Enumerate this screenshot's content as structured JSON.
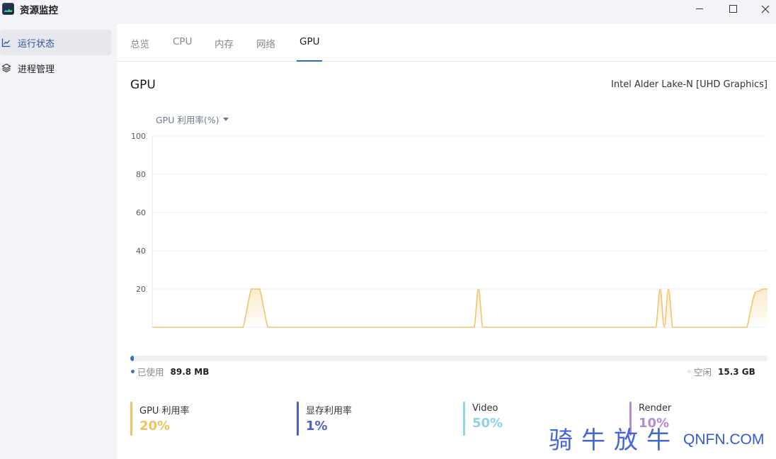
{
  "window": {
    "title": "资源监控",
    "controls": {
      "minimize": "minimize-icon",
      "maximize": "maximize-icon",
      "close": "close-icon"
    }
  },
  "sidebar": {
    "items": [
      {
        "label": "运行状态",
        "icon": "line-chart-icon",
        "active": true
      },
      {
        "label": "进程管理",
        "icon": "layers-icon",
        "active": false
      }
    ]
  },
  "tabs": [
    {
      "label": "总览",
      "active": false
    },
    {
      "label": "CPU",
      "active": false
    },
    {
      "label": "内存",
      "active": false
    },
    {
      "label": "网络",
      "active": false
    },
    {
      "label": "GPU",
      "active": true
    }
  ],
  "gpu": {
    "title": "GPU",
    "model": "Intel Alder Lake-N [UHD Graphics]",
    "metric_selector": "GPU 利用率(%)"
  },
  "chart_data": {
    "type": "area",
    "ylim": [
      0,
      100
    ],
    "yticks": [
      "100",
      "80",
      "60",
      "40",
      "20"
    ],
    "grid": true,
    "color": "#f2c46d",
    "series": [
      {
        "x": [
          0,
          1,
          2,
          3,
          4,
          5,
          6,
          7,
          8,
          9,
          10,
          11,
          12,
          13,
          14,
          15,
          16,
          17,
          18,
          19,
          20,
          21,
          22,
          23,
          24,
          25,
          26,
          27,
          28,
          29,
          30,
          31,
          32,
          33,
          34,
          35,
          36,
          37,
          38,
          39,
          40,
          41,
          42,
          43,
          44,
          45,
          46,
          47,
          48,
          49,
          50,
          51,
          52,
          53,
          54,
          55,
          56,
          57,
          58,
          59,
          60,
          61,
          62,
          63,
          64,
          65,
          66,
          67,
          68,
          69,
          70,
          71,
          72,
          73,
          74,
          75,
          76,
          77,
          78,
          79,
          80,
          81,
          82,
          83,
          84,
          85,
          86,
          87,
          88,
          89,
          90,
          91,
          92,
          93,
          94,
          95,
          96,
          97,
          98,
          99,
          100,
          101,
          102,
          103,
          104,
          105,
          106,
          107,
          108,
          109,
          110,
          111,
          112,
          113,
          114,
          115,
          116,
          117,
          118,
          119,
          120,
          121,
          122,
          123,
          124,
          125,
          126,
          127,
          128,
          129,
          130,
          131,
          132,
          133,
          134,
          135,
          136,
          137,
          138,
          139,
          140,
          141,
          142,
          143,
          144,
          145,
          146,
          147,
          148,
          149
        ],
        "values": [
          0,
          0,
          0,
          0,
          0,
          0,
          0,
          0,
          0,
          0,
          0,
          0,
          0,
          0,
          0,
          0,
          0,
          0,
          0,
          0,
          0,
          0,
          0,
          10,
          20,
          20,
          20,
          10,
          0,
          0,
          0,
          0,
          0,
          0,
          0,
          0,
          0,
          0,
          0,
          0,
          0,
          0,
          0,
          0,
          0,
          0,
          0,
          0,
          0,
          0,
          0,
          0,
          0,
          0,
          0,
          0,
          0,
          0,
          0,
          0,
          0,
          0,
          0,
          0,
          0,
          0,
          0,
          0,
          0,
          0,
          0,
          0,
          0,
          0,
          0,
          0,
          0,
          0,
          0,
          20,
          0,
          0,
          0,
          0,
          0,
          0,
          0,
          0,
          0,
          0,
          0,
          0,
          0,
          0,
          0,
          0,
          0,
          0,
          0,
          0,
          0,
          0,
          0,
          0,
          0,
          0,
          0,
          0,
          0,
          0,
          0,
          0,
          0,
          0,
          0,
          0,
          0,
          0,
          0,
          0,
          0,
          0,
          0,
          20,
          0,
          20,
          0,
          0,
          0,
          0,
          0,
          0,
          0,
          0,
          0,
          0,
          0,
          0,
          0,
          0,
          0,
          0,
          0,
          0,
          0,
          10,
          18,
          19,
          20,
          20
        ]
      }
    ]
  },
  "memory": {
    "used_label": "已使用",
    "used_value": "89.8 MB",
    "free_label": "空闲",
    "free_value": "15.3 GB",
    "used_fraction": 0.006,
    "used_color": "#3a6fd1",
    "free_color": "#eef0f4"
  },
  "stats": [
    {
      "label": "GPU 利用率",
      "value": "20%",
      "color": "#f0c262"
    },
    {
      "label": "显存利用率",
      "value": "1%",
      "color": "#4b5fc8"
    },
    {
      "label": "Video",
      "value": "50%",
      "color": "#8fd3e6"
    },
    {
      "label": "Render",
      "value": "10%",
      "color": "#b78ad6"
    }
  ],
  "watermark": {
    "cn": "骑牛放牛",
    "en": "QNFN.COM"
  }
}
